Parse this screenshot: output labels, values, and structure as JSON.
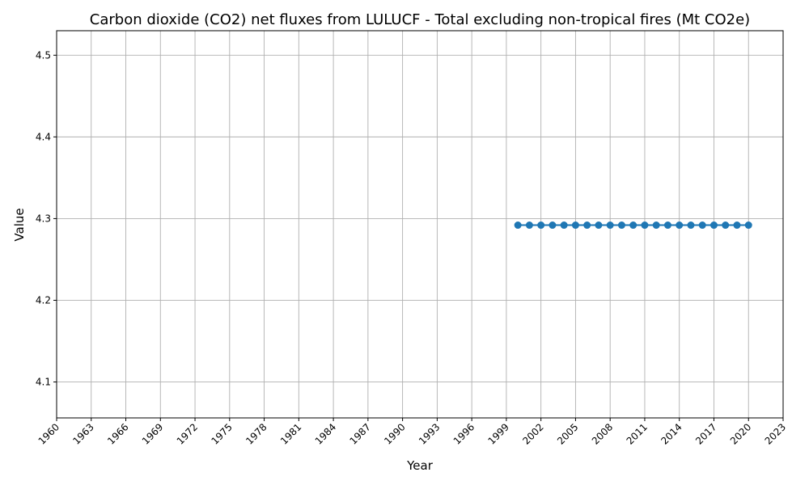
{
  "chart_data": {
    "type": "line",
    "title": "Carbon dioxide (CO2) net fluxes from LULUCF - Total excluding non-tropical fires (Mt CO2e)",
    "xlabel": "Year",
    "ylabel": "Value",
    "xlim": [
      1960,
      2023
    ],
    "ylim": [
      4.056,
      4.53
    ],
    "x_ticks": [
      "1960",
      "1963",
      "1966",
      "1969",
      "1972",
      "1975",
      "1978",
      "1981",
      "1984",
      "1987",
      "1990",
      "1993",
      "1996",
      "1999",
      "2002",
      "2005",
      "2008",
      "2011",
      "2014",
      "2017",
      "2020",
      "2023"
    ],
    "y_ticks": [
      "4.1",
      "4.2",
      "4.3",
      "4.4",
      "4.5"
    ],
    "grid": true,
    "series": [
      {
        "color": "#1f77b4",
        "x": [
          2000,
          2001,
          2002,
          2003,
          2004,
          2005,
          2006,
          2007,
          2008,
          2009,
          2010,
          2011,
          2012,
          2013,
          2014,
          2015,
          2016,
          2017,
          2018,
          2019,
          2020
        ],
        "values": [
          4.292,
          4.292,
          4.292,
          4.292,
          4.292,
          4.292,
          4.292,
          4.292,
          4.292,
          4.292,
          4.292,
          4.292,
          4.292,
          4.292,
          4.292,
          4.292,
          4.292,
          4.292,
          4.292,
          4.292,
          4.292
        ]
      }
    ]
  }
}
